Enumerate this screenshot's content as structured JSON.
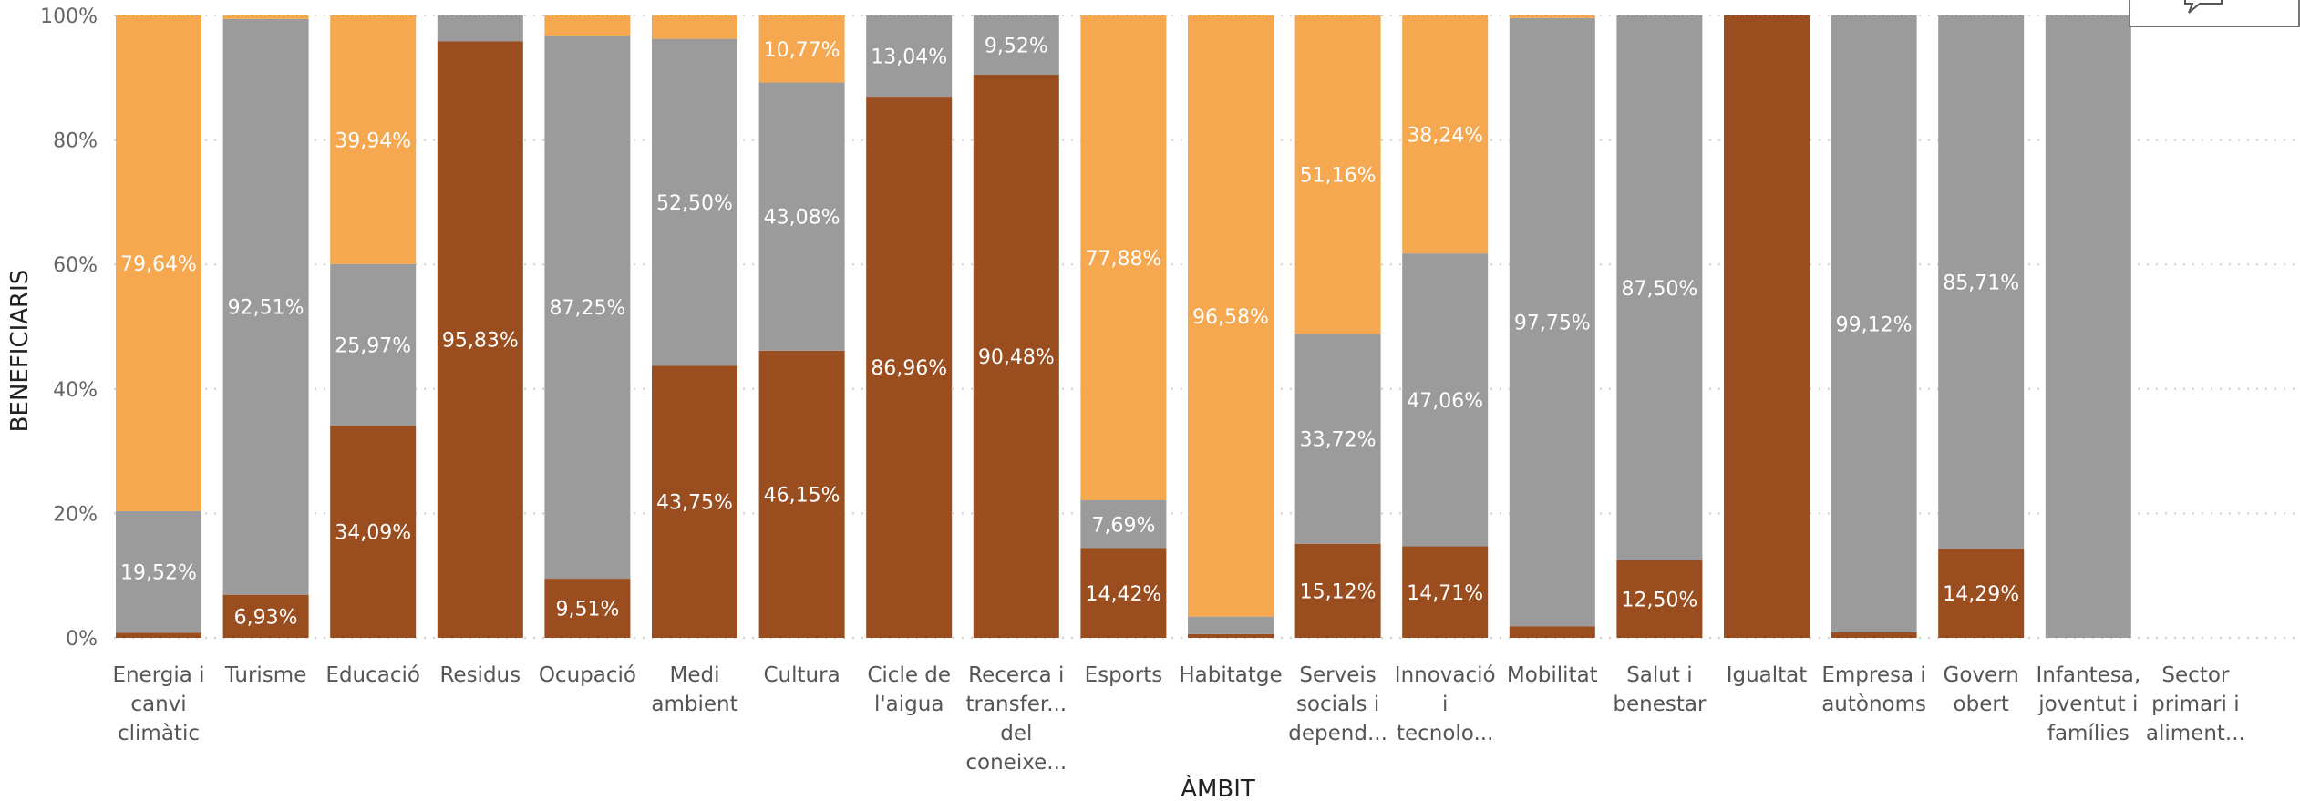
{
  "chart_data": {
    "type": "bar",
    "stacked": true,
    "percent": true,
    "xlabel": "ÀMBIT",
    "ylabel": "BENEFICIARIS",
    "ylim": [
      0,
      100
    ],
    "yticks": [
      "0%",
      "20%",
      "40%",
      "60%",
      "80%",
      "100%"
    ],
    "grid": true,
    "categories": [
      [
        "Energia i",
        "canvi",
        "climàtic"
      ],
      [
        "Turisme"
      ],
      [
        "Educació"
      ],
      [
        "Residus"
      ],
      [
        "Ocupació"
      ],
      [
        "Medi",
        "ambient"
      ],
      [
        "Cultura"
      ],
      [
        "Cicle de",
        "l'aigua"
      ],
      [
        "Recerca i",
        "transfer...",
        "del",
        "coneixe..."
      ],
      [
        "Esports"
      ],
      [
        "Habitatge"
      ],
      [
        "Serveis",
        "socials i",
        "depend..."
      ],
      [
        "Innovació",
        "i",
        "tecnolo..."
      ],
      [
        "Mobilitat"
      ],
      [
        "Salut i",
        "benestar"
      ],
      [
        "Igualtat"
      ],
      [
        "Empresa i",
        "autònoms"
      ],
      [
        "Govern",
        "obert"
      ],
      [
        "Infantesa,",
        "joventut i",
        "famílies"
      ],
      [
        "Sector",
        "primari i",
        "aliment..."
      ]
    ],
    "series": [
      {
        "color": "#9a4d1f",
        "values": [
          0.84,
          6.93,
          34.09,
          95.83,
          9.51,
          43.75,
          46.15,
          86.96,
          90.48,
          14.42,
          0.6,
          15.12,
          14.71,
          1.83,
          12.5,
          100,
          0.88,
          14.29,
          0,
          0
        ],
        "labels": [
          "",
          "6,93%",
          "34,09%",
          "95,83%",
          "9,51%",
          "43,75%",
          "46,15%",
          "86,96%",
          "90,48%",
          "14,42%",
          "",
          "15,12%",
          "14,71%",
          "",
          "12,50%",
          "",
          "",
          "14,29%",
          "",
          ""
        ]
      },
      {
        "color": "#9b9b9c",
        "values": [
          19.52,
          92.51,
          25.97,
          4.17,
          87.25,
          52.5,
          43.08,
          13.04,
          9.52,
          7.69,
          2.82,
          33.72,
          47.06,
          97.75,
          87.5,
          0,
          99.12,
          85.71,
          100,
          0
        ],
        "labels": [
          "19,52%",
          "92,51%",
          "25,97%",
          "",
          "87,25%",
          "52,50%",
          "43,08%",
          "13,04%",
          "9,52%",
          "7,69%",
          "",
          "33,72%",
          "47,06%",
          "97,75%",
          "87,50%",
          "",
          "99,12%",
          "85,71%",
          "",
          ""
        ]
      },
      {
        "color": "#f5a850",
        "values": [
          79.64,
          0.56,
          39.94,
          0,
          3.24,
          3.75,
          10.77,
          0,
          0,
          77.88,
          96.58,
          51.16,
          38.24,
          0.42,
          0,
          0,
          0,
          0,
          0,
          0
        ],
        "labels": [
          "79,64%",
          "",
          "39,94%",
          "",
          "",
          "",
          "10,77%",
          "",
          "",
          "77,88%",
          "96,58%",
          "51,16%",
          "38,24%",
          "",
          "",
          "",
          "",
          "",
          "",
          ""
        ]
      }
    ]
  }
}
